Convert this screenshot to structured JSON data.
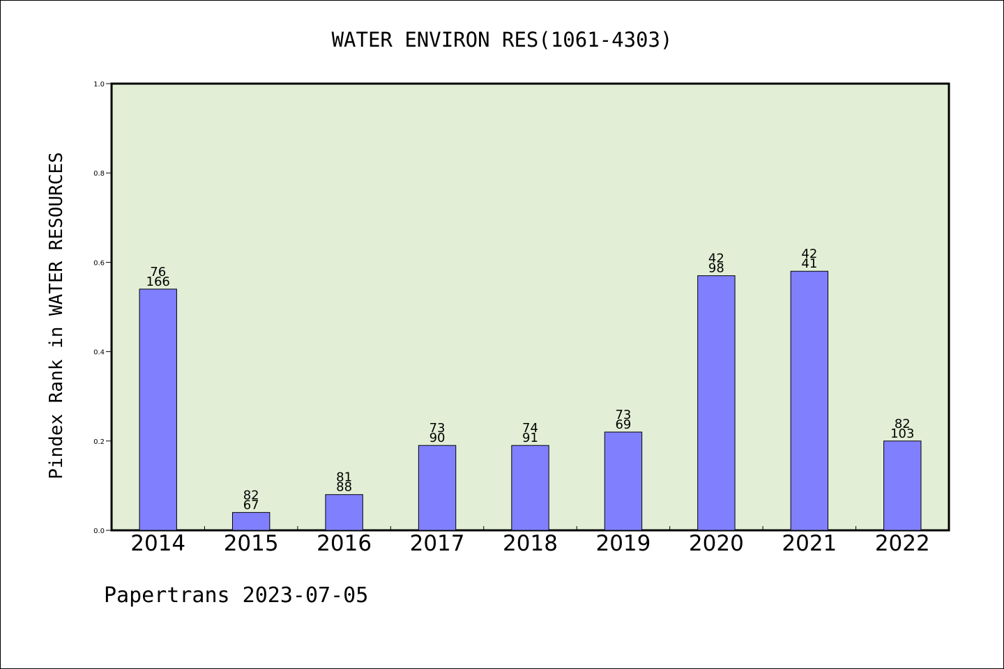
{
  "footer": {
    "credit": "Papertrans 2023-07-05"
  },
  "chart_data": {
    "type": "bar",
    "title": "WATER ENVIRON RES(1061-4303)",
    "xlabel": "",
    "ylabel": "Pindex Rank in WATER RESOURCES",
    "ylim": [
      0.0,
      1.0
    ],
    "yticks": [
      "0.0",
      "0.2",
      "0.4",
      "0.6",
      "0.8",
      "1.0"
    ],
    "grid": false,
    "legend": "none",
    "categories": [
      "2014",
      "2015",
      "2016",
      "2017",
      "2018",
      "2019",
      "2020",
      "2021",
      "2022"
    ],
    "values": [
      0.54,
      0.04,
      0.08,
      0.19,
      0.19,
      0.22,
      0.57,
      0.58,
      0.2
    ],
    "labels_top": [
      "76",
      "82",
      "81",
      "73",
      "74",
      "73",
      "42",
      "42",
      "82"
    ],
    "labels_bottom": [
      "166",
      "67",
      "88",
      "90",
      "91",
      "69",
      "98",
      "41",
      "103"
    ],
    "colors": {
      "bar": "#8080ff",
      "bar_edge": "#000000",
      "plot_background": "#e2efd6",
      "axes": "#000000"
    }
  }
}
